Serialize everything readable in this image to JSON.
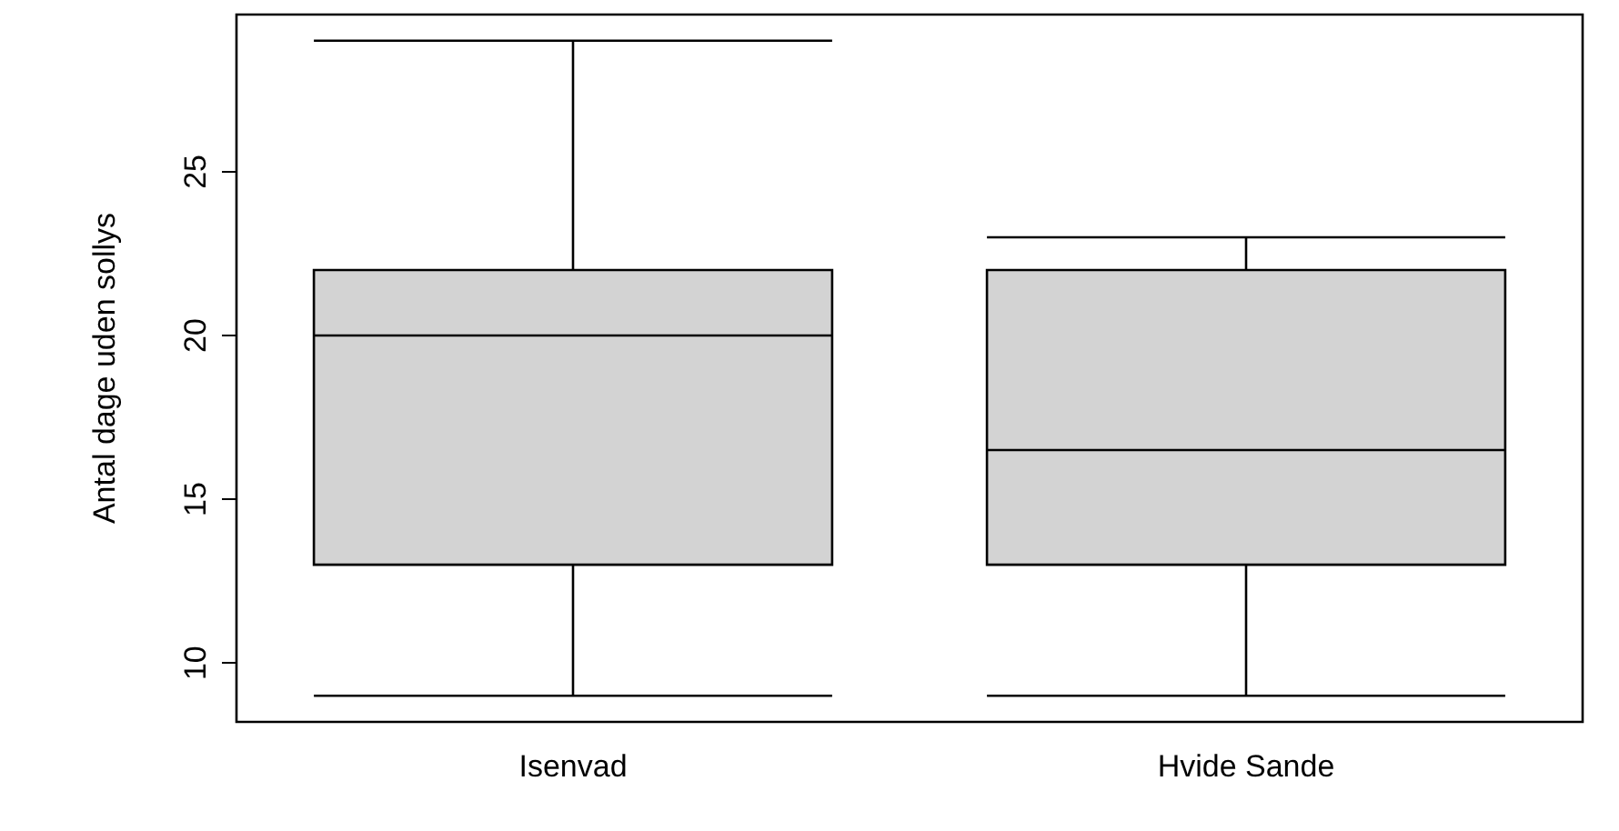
{
  "chart_data": {
    "type": "box",
    "ylabel": "Antal dage uden sollys",
    "categories": [
      "Isenvad",
      "Hvide Sande"
    ],
    "color": "#d3d3d3",
    "boxes": [
      {
        "low": 9,
        "q1": 13,
        "median": 20,
        "q3": 22,
        "high": 29
      },
      {
        "low": 9,
        "q1": 13,
        "median": 16.5,
        "q3": 22,
        "high": 23
      }
    ],
    "ylim": [
      8.2,
      29.8
    ],
    "yticks": [
      10,
      15,
      20,
      25
    ],
    "grid": false
  }
}
